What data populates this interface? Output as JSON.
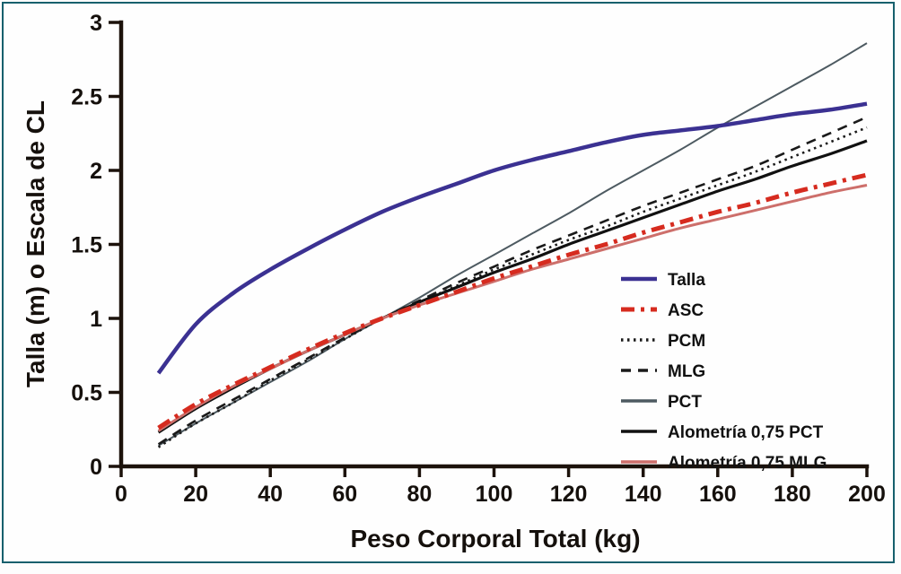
{
  "frame": {
    "border_color": "#17606d",
    "background_color": "#fefefe"
  },
  "chart_data": {
    "type": "line",
    "title": "",
    "xlabel": "Peso Corporal Total (kg)",
    "ylabel": "Talla (m) o Escala de CL",
    "xlim": [
      0,
      200
    ],
    "ylim": [
      0,
      3
    ],
    "xticks": [
      0,
      20,
      40,
      60,
      80,
      100,
      120,
      140,
      160,
      180,
      200
    ],
    "xtick_labels": [
      "0",
      "20",
      "40",
      "60",
      "80",
      "100",
      "120",
      "140",
      "160",
      "180",
      "200"
    ],
    "yticks": [
      0,
      0.5,
      1,
      1.5,
      2,
      2.5,
      3
    ],
    "ytick_labels": [
      "0",
      "0.5",
      "1",
      "1.5",
      "2",
      "2.5",
      "3"
    ],
    "grid": false,
    "axis_color": "#1c120b",
    "text_color": "#15100c",
    "legend_position": "right-middle",
    "x": [
      10,
      20,
      30,
      40,
      50,
      60,
      70,
      80,
      90,
      100,
      110,
      120,
      130,
      140,
      150,
      160,
      170,
      180,
      190,
      200
    ],
    "series": [
      {
        "name": "PCT",
        "color": "#4d5a61",
        "dash": [],
        "width": 2,
        "values": [
          0.14,
          0.29,
          0.43,
          0.57,
          0.71,
          0.86,
          1.0,
          1.14,
          1.29,
          1.43,
          1.57,
          1.71,
          1.86,
          2.0,
          2.14,
          2.29,
          2.43,
          2.57,
          2.71,
          2.86
        ]
      },
      {
        "name": "PCM",
        "color": "#1a1a1a",
        "dash": [
          2.5,
          4.5
        ],
        "width": 2.6,
        "values": [
          0.13,
          0.29,
          0.43,
          0.58,
          0.72,
          0.86,
          1.0,
          1.11,
          1.22,
          1.33,
          1.43,
          1.53,
          1.62,
          1.72,
          1.81,
          1.9,
          1.99,
          2.09,
          2.19,
          2.29
        ]
      },
      {
        "name": "MLG",
        "color": "#1a1a1a",
        "dash": [
          11,
          8
        ],
        "width": 2.6,
        "values": [
          0.15,
          0.31,
          0.45,
          0.59,
          0.73,
          0.87,
          1.0,
          1.12,
          1.24,
          1.35,
          1.46,
          1.56,
          1.66,
          1.76,
          1.85,
          1.94,
          2.03,
          2.14,
          2.25,
          2.36
        ]
      },
      {
        "name": "Alometría 0,75 PCT",
        "color": "#111111",
        "dash": [],
        "width": 3.2,
        "values": [
          0.23,
          0.39,
          0.53,
          0.66,
          0.78,
          0.89,
          1.0,
          1.11,
          1.21,
          1.31,
          1.4,
          1.5,
          1.59,
          1.68,
          1.77,
          1.86,
          1.94,
          2.03,
          2.11,
          2.2
        ]
      },
      {
        "name": "Alometría 0,75 MLG",
        "color": "#cd6f6b",
        "dash": [],
        "width": 3,
        "values": [
          0.24,
          0.4,
          0.54,
          0.66,
          0.78,
          0.89,
          1.0,
          1.09,
          1.17,
          1.25,
          1.33,
          1.4,
          1.47,
          1.54,
          1.61,
          1.67,
          1.73,
          1.79,
          1.85,
          1.9
        ]
      },
      {
        "name": "ASC",
        "color": "#d62b1f",
        "dash": [
          15,
          7,
          4,
          7
        ],
        "width": 5,
        "values": [
          0.26,
          0.42,
          0.55,
          0.67,
          0.79,
          0.9,
          1.0,
          1.09,
          1.18,
          1.27,
          1.35,
          1.43,
          1.5,
          1.58,
          1.65,
          1.72,
          1.78,
          1.85,
          1.91,
          1.97
        ]
      },
      {
        "name": "Talla",
        "color": "#3b3192",
        "dash": [],
        "width": 4.5,
        "values": [
          0.63,
          0.96,
          1.17,
          1.33,
          1.47,
          1.6,
          1.72,
          1.82,
          1.91,
          2.0,
          2.07,
          2.13,
          2.19,
          2.24,
          2.27,
          2.3,
          2.34,
          2.38,
          2.41,
          2.45
        ]
      }
    ],
    "legend_order": [
      "Talla",
      "ASC",
      "PCM",
      "MLG",
      "PCT",
      "Alometría 0,75 PCT",
      "Alometría 0,75 MLG"
    ]
  }
}
